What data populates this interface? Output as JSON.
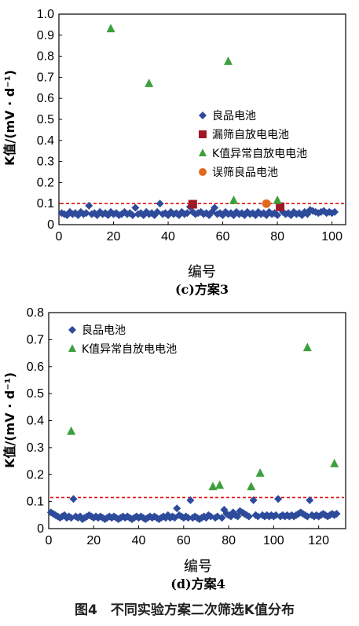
{
  "colors": {
    "good": "#2E4B9B",
    "leak": "#A01828",
    "abnormal": "#3CA03C",
    "misjudged": "#E06A1E",
    "threshold": "#E01010"
  },
  "caption": "图4　不同实验方案二次筛选K值分布",
  "chart_data": [
    {
      "type": "scatter",
      "subtitle": "(c)方案3",
      "xlabel": "编号",
      "ylabel": "K值/(mV · d⁻¹)",
      "xlim": [
        0,
        105
      ],
      "ylim": [
        0,
        1.0
      ],
      "xticks": [
        "0",
        "20",
        "40",
        "60",
        "80",
        "100"
      ],
      "yticks": [
        "0",
        "0.1",
        "0.2",
        "0.3",
        "0.4",
        "0.5",
        "0.6",
        "0.7",
        "0.8",
        "0.9",
        "1.0"
      ],
      "threshold": 0.1,
      "legend_position": "right-center",
      "series": [
        {
          "name": "良品电池",
          "marker": "diamond",
          "color": "#2E4B9B",
          "points": [
            [
              1,
              0.055
            ],
            [
              2,
              0.05
            ],
            [
              3,
              0.045
            ],
            [
              4,
              0.06
            ],
            [
              5,
              0.05
            ],
            [
              6,
              0.055
            ],
            [
              7,
              0.045
            ],
            [
              8,
              0.06
            ],
            [
              9,
              0.05
            ],
            [
              10,
              0.055
            ],
            [
              11,
              0.09
            ],
            [
              12,
              0.05
            ],
            [
              13,
              0.055
            ],
            [
              14,
              0.045
            ],
            [
              15,
              0.06
            ],
            [
              16,
              0.05
            ],
            [
              17,
              0.055
            ],
            [
              18,
              0.045
            ],
            [
              19,
              0.06
            ],
            [
              20,
              0.05
            ],
            [
              21,
              0.055
            ],
            [
              22,
              0.045
            ],
            [
              23,
              0.05
            ],
            [
              24,
              0.06
            ],
            [
              25,
              0.05
            ],
            [
              26,
              0.055
            ],
            [
              27,
              0.045
            ],
            [
              28,
              0.08
            ],
            [
              29,
              0.05
            ],
            [
              30,
              0.055
            ],
            [
              31,
              0.045
            ],
            [
              32,
              0.06
            ],
            [
              33,
              0.05
            ],
            [
              34,
              0.055
            ],
            [
              35,
              0.045
            ],
            [
              36,
              0.06
            ],
            [
              37,
              0.1
            ],
            [
              38,
              0.05
            ],
            [
              39,
              0.055
            ],
            [
              40,
              0.045
            ],
            [
              41,
              0.06
            ],
            [
              42,
              0.05
            ],
            [
              43,
              0.055
            ],
            [
              44,
              0.045
            ],
            [
              45,
              0.06
            ],
            [
              46,
              0.05
            ],
            [
              47,
              0.055
            ],
            [
              48,
              0.085
            ],
            [
              49,
              0.06
            ],
            [
              50,
              0.05
            ],
            [
              51,
              0.055
            ],
            [
              52,
              0.06
            ],
            [
              53,
              0.05
            ],
            [
              54,
              0.055
            ],
            [
              55,
              0.045
            ],
            [
              56,
              0.06
            ],
            [
              57,
              0.08
            ],
            [
              58,
              0.05
            ],
            [
              59,
              0.055
            ],
            [
              60,
              0.045
            ],
            [
              61,
              0.06
            ],
            [
              62,
              0.05
            ],
            [
              63,
              0.055
            ],
            [
              64,
              0.045
            ],
            [
              65,
              0.06
            ],
            [
              66,
              0.05
            ],
            [
              67,
              0.055
            ],
            [
              68,
              0.045
            ],
            [
              69,
              0.06
            ],
            [
              70,
              0.05
            ],
            [
              71,
              0.055
            ],
            [
              72,
              0.045
            ],
            [
              73,
              0.06
            ],
            [
              74,
              0.05
            ],
            [
              75,
              0.055
            ],
            [
              76,
              0.045
            ],
            [
              77,
              0.06
            ],
            [
              78,
              0.05
            ],
            [
              79,
              0.055
            ],
            [
              80,
              0.045
            ],
            [
              82,
              0.06
            ],
            [
              83,
              0.05
            ],
            [
              84,
              0.055
            ],
            [
              85,
              0.045
            ],
            [
              86,
              0.06
            ],
            [
              87,
              0.05
            ],
            [
              88,
              0.055
            ],
            [
              89,
              0.045
            ],
            [
              90,
              0.06
            ],
            [
              91,
              0.05
            ],
            [
              92,
              0.07
            ],
            [
              93,
              0.065
            ],
            [
              94,
              0.06
            ],
            [
              95,
              0.055
            ],
            [
              96,
              0.06
            ],
            [
              97,
              0.065
            ],
            [
              98,
              0.055
            ],
            [
              99,
              0.06
            ],
            [
              100,
              0.055
            ],
            [
              101,
              0.06
            ]
          ]
        },
        {
          "name": "漏筛自放电电池",
          "marker": "square",
          "color": "#A01828",
          "points": [
            [
              49,
              0.097
            ],
            [
              81,
              0.085
            ]
          ]
        },
        {
          "name": "K值异常自放电电池",
          "marker": "triangle",
          "color": "#3CA03C",
          "points": [
            [
              19,
              0.93
            ],
            [
              33,
              0.67
            ],
            [
              62,
              0.775
            ],
            [
              64,
              0.115
            ],
            [
              80,
              0.115
            ]
          ]
        },
        {
          "name": "误筛良品电池",
          "marker": "circle",
          "color": "#E06A1E",
          "points": [
            [
              76,
              0.1
            ]
          ]
        }
      ]
    },
    {
      "type": "scatter",
      "subtitle": "(d)方案4",
      "xlabel": "编号",
      "ylabel": "K值/(mV · d⁻¹)",
      "xlim": [
        0,
        132
      ],
      "ylim": [
        0,
        0.8
      ],
      "xticks": [
        "0",
        "20",
        "40",
        "60",
        "80",
        "100",
        "120"
      ],
      "yticks": [
        "0",
        "0.1",
        "0.2",
        "0.3",
        "0.4",
        "0.5",
        "0.6",
        "0.7",
        "0.8"
      ],
      "threshold": 0.115,
      "legend_position": "top-left",
      "series": [
        {
          "name": "良品电池",
          "marker": "diamond",
          "color": "#2E4B9B",
          "points": [
            [
              1,
              0.06
            ],
            [
              2,
              0.055
            ],
            [
              3,
              0.05
            ],
            [
              4,
              0.045
            ],
            [
              5,
              0.04
            ],
            [
              6,
              0.045
            ],
            [
              7,
              0.05
            ],
            [
              8,
              0.04
            ],
            [
              9,
              0.045
            ],
            [
              10,
              0.04
            ],
            [
              11,
              0.11
            ],
            [
              12,
              0.045
            ],
            [
              13,
              0.04
            ],
            [
              14,
              0.045
            ],
            [
              15,
              0.035
            ],
            [
              16,
              0.04
            ],
            [
              17,
              0.045
            ],
            [
              18,
              0.05
            ],
            [
              19,
              0.045
            ],
            [
              20,
              0.04
            ],
            [
              21,
              0.045
            ],
            [
              22,
              0.04
            ],
            [
              23,
              0.045
            ],
            [
              24,
              0.04
            ],
            [
              25,
              0.035
            ],
            [
              26,
              0.04
            ],
            [
              27,
              0.045
            ],
            [
              28,
              0.04
            ],
            [
              29,
              0.045
            ],
            [
              30,
              0.04
            ],
            [
              31,
              0.035
            ],
            [
              32,
              0.04
            ],
            [
              33,
              0.045
            ],
            [
              34,
              0.04
            ],
            [
              35,
              0.045
            ],
            [
              36,
              0.04
            ],
            [
              37,
              0.035
            ],
            [
              38,
              0.04
            ],
            [
              39,
              0.045
            ],
            [
              40,
              0.04
            ],
            [
              41,
              0.045
            ],
            [
              42,
              0.04
            ],
            [
              43,
              0.035
            ],
            [
              44,
              0.04
            ],
            [
              45,
              0.045
            ],
            [
              46,
              0.04
            ],
            [
              47,
              0.045
            ],
            [
              48,
              0.04
            ],
            [
              49,
              0.035
            ],
            [
              50,
              0.04
            ],
            [
              51,
              0.045
            ],
            [
              52,
              0.04
            ],
            [
              53,
              0.05
            ],
            [
              54,
              0.04
            ],
            [
              55,
              0.045
            ],
            [
              56,
              0.04
            ],
            [
              57,
              0.075
            ],
            [
              58,
              0.05
            ],
            [
              59,
              0.045
            ],
            [
              60,
              0.04
            ],
            [
              61,
              0.045
            ],
            [
              62,
              0.04
            ],
            [
              63,
              0.105
            ],
            [
              64,
              0.04
            ],
            [
              65,
              0.045
            ],
            [
              66,
              0.04
            ],
            [
              67,
              0.035
            ],
            [
              68,
              0.04
            ],
            [
              69,
              0.045
            ],
            [
              70,
              0.04
            ],
            [
              71,
              0.05
            ],
            [
              72,
              0.045
            ],
            [
              74,
              0.04
            ],
            [
              75,
              0.045
            ],
            [
              77,
              0.04
            ],
            [
              78,
              0.07
            ],
            [
              79,
              0.055
            ],
            [
              80,
              0.05
            ],
            [
              81,
              0.045
            ],
            [
              82,
              0.06
            ],
            [
              83,
              0.05
            ],
            [
              84,
              0.045
            ],
            [
              85,
              0.065
            ],
            [
              86,
              0.06
            ],
            [
              87,
              0.055
            ],
            [
              88,
              0.05
            ],
            [
              89,
              0.045
            ],
            [
              91,
              0.105
            ],
            [
              92,
              0.05
            ],
            [
              93,
              0.045
            ],
            [
              95,
              0.05
            ],
            [
              96,
              0.045
            ],
            [
              97,
              0.05
            ],
            [
              98,
              0.045
            ],
            [
              99,
              0.05
            ],
            [
              100,
              0.045
            ],
            [
              101,
              0.05
            ],
            [
              102,
              0.11
            ],
            [
              103,
              0.045
            ],
            [
              104,
              0.05
            ],
            [
              105,
              0.045
            ],
            [
              106,
              0.05
            ],
            [
              107,
              0.045
            ],
            [
              108,
              0.05
            ],
            [
              109,
              0.045
            ],
            [
              110,
              0.05
            ],
            [
              111,
              0.055
            ],
            [
              112,
              0.06
            ],
            [
              113,
              0.055
            ],
            [
              114,
              0.05
            ],
            [
              115,
              0.045
            ],
            [
              116,
              0.105
            ],
            [
              117,
              0.05
            ],
            [
              118,
              0.045
            ],
            [
              119,
              0.05
            ],
            [
              120,
              0.045
            ],
            [
              121,
              0.05
            ],
            [
              122,
              0.055
            ],
            [
              123,
              0.05
            ],
            [
              124,
              0.045
            ],
            [
              125,
              0.05
            ],
            [
              126,
              0.055
            ],
            [
              127,
              0.05
            ],
            [
              128,
              0.055
            ]
          ]
        },
        {
          "name": "K值异常自放电电池",
          "marker": "triangle",
          "color": "#3CA03C",
          "points": [
            [
              10,
              0.36
            ],
            [
              73,
              0.155
            ],
            [
              76,
              0.16
            ],
            [
              90,
              0.155
            ],
            [
              94,
              0.205
            ],
            [
              115,
              0.67
            ],
            [
              127,
              0.24
            ]
          ]
        }
      ]
    }
  ]
}
